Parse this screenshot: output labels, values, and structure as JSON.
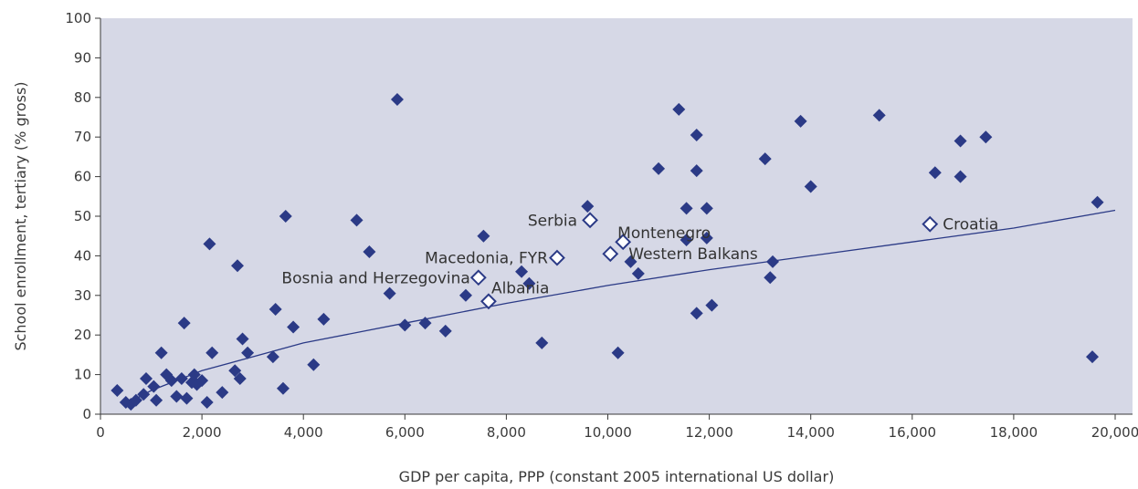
{
  "chart_data": {
    "type": "scatter",
    "title": "",
    "xlabel": "GDP per capita, PPP (constant 2005 international US dollar)",
    "ylabel": "School enrollment, tertiary (% gross)",
    "xlim": [
      0,
      20000
    ],
    "ylim": [
      0,
      100
    ],
    "x_ticks": [
      0,
      2000,
      4000,
      6000,
      8000,
      10000,
      12000,
      14000,
      16000,
      18000,
      20000
    ],
    "x_tick_labels": [
      "0",
      "2,000",
      "4,000",
      "6,000",
      "8,000",
      "10,000",
      "12,000",
      "14,000",
      "16,000",
      "18,000",
      "20,000"
    ],
    "y_ticks": [
      0,
      10,
      20,
      30,
      40,
      50,
      60,
      70,
      80,
      90,
      100
    ],
    "y_tick_labels": [
      "0",
      "10",
      "20",
      "30",
      "40",
      "50",
      "60",
      "70",
      "80",
      "90",
      "100"
    ],
    "grid": false,
    "colors": {
      "plot_background": "#d6d8e6",
      "marker": "#2b3a86",
      "trendline": "#2b3a86",
      "hollow_marker_fill": "#ffffff"
    },
    "series": [
      {
        "marker": "filled-diamond",
        "points": [
          [
            330,
            6
          ],
          [
            500,
            3
          ],
          [
            600,
            2.5
          ],
          [
            700,
            3.5
          ],
          [
            850,
            5
          ],
          [
            900,
            9
          ],
          [
            1050,
            7
          ],
          [
            1100,
            3.5
          ],
          [
            1200,
            15.5
          ],
          [
            1300,
            10
          ],
          [
            1400,
            8.5
          ],
          [
            1500,
            4.5
          ],
          [
            1600,
            9
          ],
          [
            1650,
            23
          ],
          [
            1700,
            4
          ],
          [
            1800,
            8
          ],
          [
            1850,
            10
          ],
          [
            1900,
            7.5
          ],
          [
            2000,
            8.5
          ],
          [
            2100,
            3
          ],
          [
            2150,
            43
          ],
          [
            2200,
            15.5
          ],
          [
            2400,
            5.5
          ],
          [
            2650,
            11
          ],
          [
            2700,
            37.5
          ],
          [
            2750,
            9
          ],
          [
            2800,
            19
          ],
          [
            2900,
            15.5
          ],
          [
            3400,
            14.5
          ],
          [
            3450,
            26.5
          ],
          [
            3600,
            6.5
          ],
          [
            3650,
            50
          ],
          [
            3800,
            22
          ],
          [
            4200,
            12.5
          ],
          [
            4400,
            24
          ],
          [
            5050,
            49
          ],
          [
            5300,
            41
          ],
          [
            5700,
            30.5
          ],
          [
            5850,
            79.5
          ],
          [
            6000,
            22.5
          ],
          [
            6400,
            23
          ],
          [
            6800,
            21
          ],
          [
            7200,
            30
          ],
          [
            7550,
            45
          ],
          [
            8300,
            36
          ],
          [
            8450,
            33
          ],
          [
            8700,
            18
          ],
          [
            9600,
            52.5
          ],
          [
            10200,
            15.5
          ],
          [
            10450,
            38.5
          ],
          [
            10600,
            35.5
          ],
          [
            11000,
            62
          ],
          [
            11400,
            77
          ],
          [
            11550,
            52
          ],
          [
            11550,
            44
          ],
          [
            11750,
            70.5
          ],
          [
            11750,
            61.5
          ],
          [
            11750,
            25.5
          ],
          [
            11950,
            52
          ],
          [
            11950,
            44.5
          ],
          [
            12050,
            27.5
          ],
          [
            13100,
            64.5
          ],
          [
            13200,
            34.5
          ],
          [
            13250,
            38.5
          ],
          [
            13800,
            74
          ],
          [
            14000,
            57.5
          ],
          [
            15350,
            75.5
          ],
          [
            16450,
            61
          ],
          [
            16950,
            69
          ],
          [
            16950,
            60
          ],
          [
            17450,
            70
          ],
          [
            19550,
            14.5
          ],
          [
            19650,
            53.5
          ]
        ]
      },
      {
        "marker": "hollow-diamond",
        "points": [
          {
            "x": 7450,
            "y": 34.5,
            "label": "Bosnia and Herzegovina"
          },
          {
            "x": 7650,
            "y": 28.5,
            "label": "Albania"
          },
          {
            "x": 9000,
            "y": 39.5,
            "label": "Macedonia, FYR"
          },
          {
            "x": 9650,
            "y": 49,
            "label": "Serbia"
          },
          {
            "x": 10050,
            "y": 40.5,
            "label": "Western Balkans"
          },
          {
            "x": 10300,
            "y": 43.5,
            "label": "Montenegro"
          },
          {
            "x": 16350,
            "y": 48,
            "label": "Croatia"
          }
        ]
      }
    ],
    "trendline": {
      "shape": "logarithmic",
      "points": [
        [
          500,
          2.5
        ],
        [
          1000,
          6
        ],
        [
          2000,
          11
        ],
        [
          4000,
          18
        ],
        [
          6000,
          23
        ],
        [
          8000,
          28
        ],
        [
          10000,
          32.5
        ],
        [
          12000,
          36.5
        ],
        [
          14000,
          40
        ],
        [
          16000,
          43.5
        ],
        [
          18000,
          47
        ],
        [
          20000,
          51.5
        ]
      ]
    }
  }
}
